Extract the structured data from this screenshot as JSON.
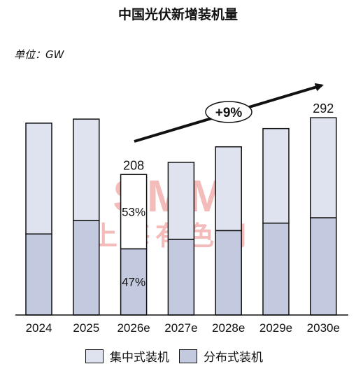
{
  "chart_data": {
    "type": "bar",
    "stacked": true,
    "title": "中国光伏新增装机量",
    "unit_label": "单位：GW",
    "categories": [
      "2024",
      "2025",
      "2026e",
      "2027e",
      "2028e",
      "2029e",
      "2030e"
    ],
    "series": [
      {
        "name": "分布式装机",
        "color": "#c3cadf",
        "values": [
          120,
          140,
          98,
          112,
          125,
          136,
          144
        ]
      },
      {
        "name": "集中式装机",
        "color": "#dfe3ef",
        "values": [
          164,
          150,
          110,
          114,
          124,
          140,
          148
        ]
      }
    ],
    "totals": [
      284,
      290,
      208,
      226,
      249,
      276,
      292
    ],
    "data_labels": [
      {
        "category": "2026e",
        "text": "208"
      },
      {
        "category": "2030e",
        "text": "292"
      }
    ],
    "share_labels": [
      {
        "category": "2026e",
        "text": "53%",
        "series": "集中式装机"
      },
      {
        "category": "2026e",
        "text": "47%",
        "series": "分布式装机"
      }
    ],
    "trend_label": "+9%",
    "watermark": {
      "text_en": "SMM",
      "text_cn": "上海有色网"
    },
    "ylim": [
      0,
      300
    ],
    "grid": false,
    "legend_position": "bottom"
  }
}
